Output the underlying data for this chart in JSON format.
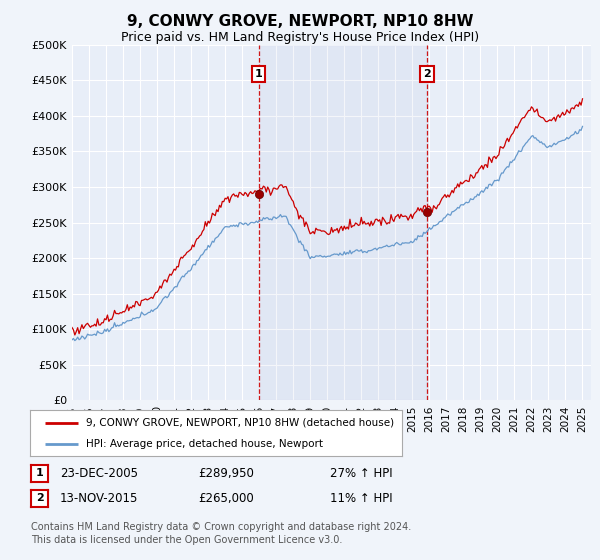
{
  "title": "9, CONWY GROVE, NEWPORT, NP10 8HW",
  "subtitle": "Price paid vs. HM Land Registry's House Price Index (HPI)",
  "title_fontsize": 11,
  "subtitle_fontsize": 9,
  "ylabel_ticks": [
    "£0",
    "£50K",
    "£100K",
    "£150K",
    "£200K",
    "£250K",
    "£300K",
    "£350K",
    "£400K",
    "£450K",
    "£500K"
  ],
  "ytick_values": [
    0,
    50000,
    100000,
    150000,
    200000,
    250000,
    300000,
    350000,
    400000,
    450000,
    500000
  ],
  "ylim": [
    0,
    500000
  ],
  "xlim_start": 1995.0,
  "xlim_end": 2025.5,
  "background_color": "#f0f4fa",
  "plot_bg_color": "#e8eef8",
  "grid_color": "#ffffff",
  "red_line_color": "#cc0000",
  "blue_line_color": "#6699cc",
  "marker1_date": 2005.97,
  "marker2_date": 2015.87,
  "marker1_price": 289950,
  "marker2_price": 265000,
  "vline_color": "#cc0000",
  "annotation_box_color": "#cc0000",
  "legend_label_red": "9, CONWY GROVE, NEWPORT, NP10 8HW (detached house)",
  "legend_label_blue": "HPI: Average price, detached house, Newport",
  "table_row1": [
    "1",
    "23-DEC-2005",
    "£289,950",
    "27% ↑ HPI"
  ],
  "table_row2": [
    "2",
    "13-NOV-2015",
    "£265,000",
    "11% ↑ HPI"
  ],
  "footer": "Contains HM Land Registry data © Crown copyright and database right 2024.\nThis data is licensed under the Open Government Licence v3.0.",
  "xtick_years": [
    1995,
    1996,
    1997,
    1998,
    1999,
    2000,
    2001,
    2002,
    2003,
    2004,
    2005,
    2006,
    2007,
    2008,
    2009,
    2010,
    2011,
    2012,
    2013,
    2014,
    2015,
    2016,
    2017,
    2018,
    2019,
    2020,
    2021,
    2022,
    2023,
    2024,
    2025
  ]
}
